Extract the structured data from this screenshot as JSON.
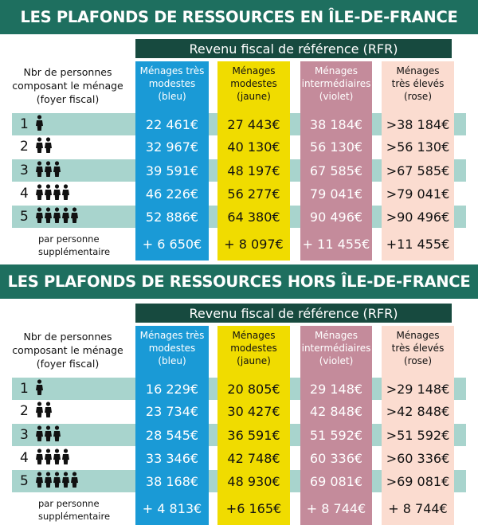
{
  "colors": {
    "header": "#1e6f5f",
    "rfr": "#174a3f",
    "band": "#a8d4cd",
    "bleu": "#1a9ad6",
    "jaune": "#f0dc00",
    "violet": "#c48b9b",
    "rose": "#fbdcd0"
  },
  "icons": {
    "person": "person-icon"
  },
  "sections": [
    {
      "title": "LES PLAFONDS DE RESSOURCES EN ÎLE-DE-FRANCE",
      "rfr": "Revenu fiscal de référence (RFR)",
      "row_label": [
        "Nbr de personnes",
        "composant le ménage",
        "(foyer fiscal)"
      ],
      "columns": [
        [
          "Ménages très",
          "modestes",
          "(bleu)"
        ],
        [
          "Ménages",
          "modestes",
          "(jaune)"
        ],
        [
          "Ménages",
          "intermédiaires",
          "(violet)"
        ],
        [
          "Ménages",
          "très élevés",
          "(rose)"
        ]
      ],
      "rows": [
        {
          "n": "1",
          "values": [
            "22 461€",
            "27 443€",
            "38 184€",
            ">38 184€"
          ]
        },
        {
          "n": "2",
          "values": [
            "32 967€",
            "40 130€",
            "56 130€",
            ">56 130€"
          ]
        },
        {
          "n": "3",
          "values": [
            "39 591€",
            "48 197€",
            "67 585€",
            ">67 585€"
          ]
        },
        {
          "n": "4",
          "values": [
            "46 226€",
            "56 277€",
            "79 041€",
            ">79 041€"
          ]
        },
        {
          "n": "5",
          "values": [
            "52 886€",
            "64 380€",
            "90 496€",
            ">90 496€"
          ]
        }
      ],
      "extra": {
        "label": [
          "par personne",
          "supplémentaire"
        ],
        "values": [
          "+ 6 650€",
          "+ 8 097€",
          "+ 11 455€",
          "+11 455€"
        ]
      }
    },
    {
      "title": "LES PLAFONDS DE RESSOURCES HORS ÎLE-DE-FRANCE",
      "rfr": "Revenu fiscal de référence (RFR)",
      "row_label": [
        "Nbr de personnes",
        "composant le ménage",
        "(foyer fiscal)"
      ],
      "columns": [
        [
          "Ménages très",
          "modestes",
          "(bleu)"
        ],
        [
          "Ménages",
          "modestes",
          "(jaune)"
        ],
        [
          "Ménages",
          "intermédiaires",
          "(violet)"
        ],
        [
          "Ménages",
          "très élevés",
          "(rose)"
        ]
      ],
      "rows": [
        {
          "n": "1",
          "values": [
            "16 229€",
            "20 805€",
            "29 148€",
            ">29 148€"
          ]
        },
        {
          "n": "2",
          "values": [
            "23 734€",
            "30 427€",
            "42 848€",
            ">42 848€"
          ]
        },
        {
          "n": "3",
          "values": [
            "28 545€",
            "36 591€",
            "51 592€",
            ">51 592€"
          ]
        },
        {
          "n": "4",
          "values": [
            "33 346€",
            "42 748€",
            "60 336€",
            ">60 336€"
          ]
        },
        {
          "n": "5",
          "values": [
            "38 168€",
            "48 930€",
            "69 081€",
            ">69 081€"
          ]
        }
      ],
      "extra": {
        "label": [
          "par personne",
          "supplémentaire"
        ],
        "values": [
          "+ 4 813€",
          "+6 165€",
          "+ 8 744€",
          "+ 8 744€"
        ]
      }
    }
  ]
}
